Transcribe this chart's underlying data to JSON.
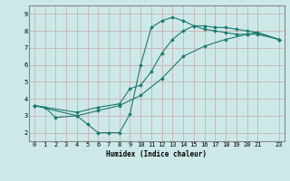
{
  "xlabel": "Humidex (Indice chaleur)",
  "xlim": [
    -0.5,
    23.5
  ],
  "ylim": [
    1.5,
    9.5
  ],
  "xticks": [
    0,
    1,
    2,
    3,
    4,
    5,
    6,
    7,
    8,
    9,
    10,
    11,
    12,
    13,
    14,
    15,
    16,
    17,
    18,
    19,
    20,
    21,
    23
  ],
  "yticks": [
    2,
    3,
    4,
    5,
    6,
    7,
    8,
    9
  ],
  "bg_color": "#cde8e8",
  "line_color": "#1a7a6e",
  "line1_x": [
    0,
    1,
    2,
    4,
    5,
    6,
    7,
    8,
    9,
    10,
    11,
    12,
    13,
    14,
    15,
    16,
    17,
    18,
    19,
    20,
    21,
    23
  ],
  "line1_y": [
    3.6,
    3.5,
    2.9,
    3.0,
    2.5,
    2.0,
    2.0,
    2.0,
    3.1,
    6.0,
    8.2,
    8.6,
    8.8,
    8.6,
    8.3,
    8.1,
    8.0,
    7.9,
    7.8,
    7.8,
    7.8,
    7.5
  ],
  "line2_x": [
    0,
    4,
    6,
    8,
    9,
    10,
    11,
    12,
    13,
    14,
    15,
    16,
    17,
    18,
    19,
    20,
    21,
    23
  ],
  "line2_y": [
    3.6,
    3.2,
    3.5,
    3.7,
    4.6,
    4.8,
    5.6,
    6.7,
    7.5,
    8.0,
    8.3,
    8.3,
    8.2,
    8.2,
    8.1,
    8.0,
    7.9,
    7.5
  ],
  "line3_x": [
    0,
    4,
    6,
    8,
    10,
    12,
    14,
    16,
    18,
    20,
    21,
    23
  ],
  "line3_y": [
    3.6,
    3.0,
    3.3,
    3.6,
    4.2,
    5.2,
    6.5,
    7.1,
    7.5,
    7.8,
    7.9,
    7.5
  ],
  "xlabel_fontsize": 5.5,
  "tick_fontsize": 5.0,
  "linewidth": 0.8,
  "markersize": 1.8
}
